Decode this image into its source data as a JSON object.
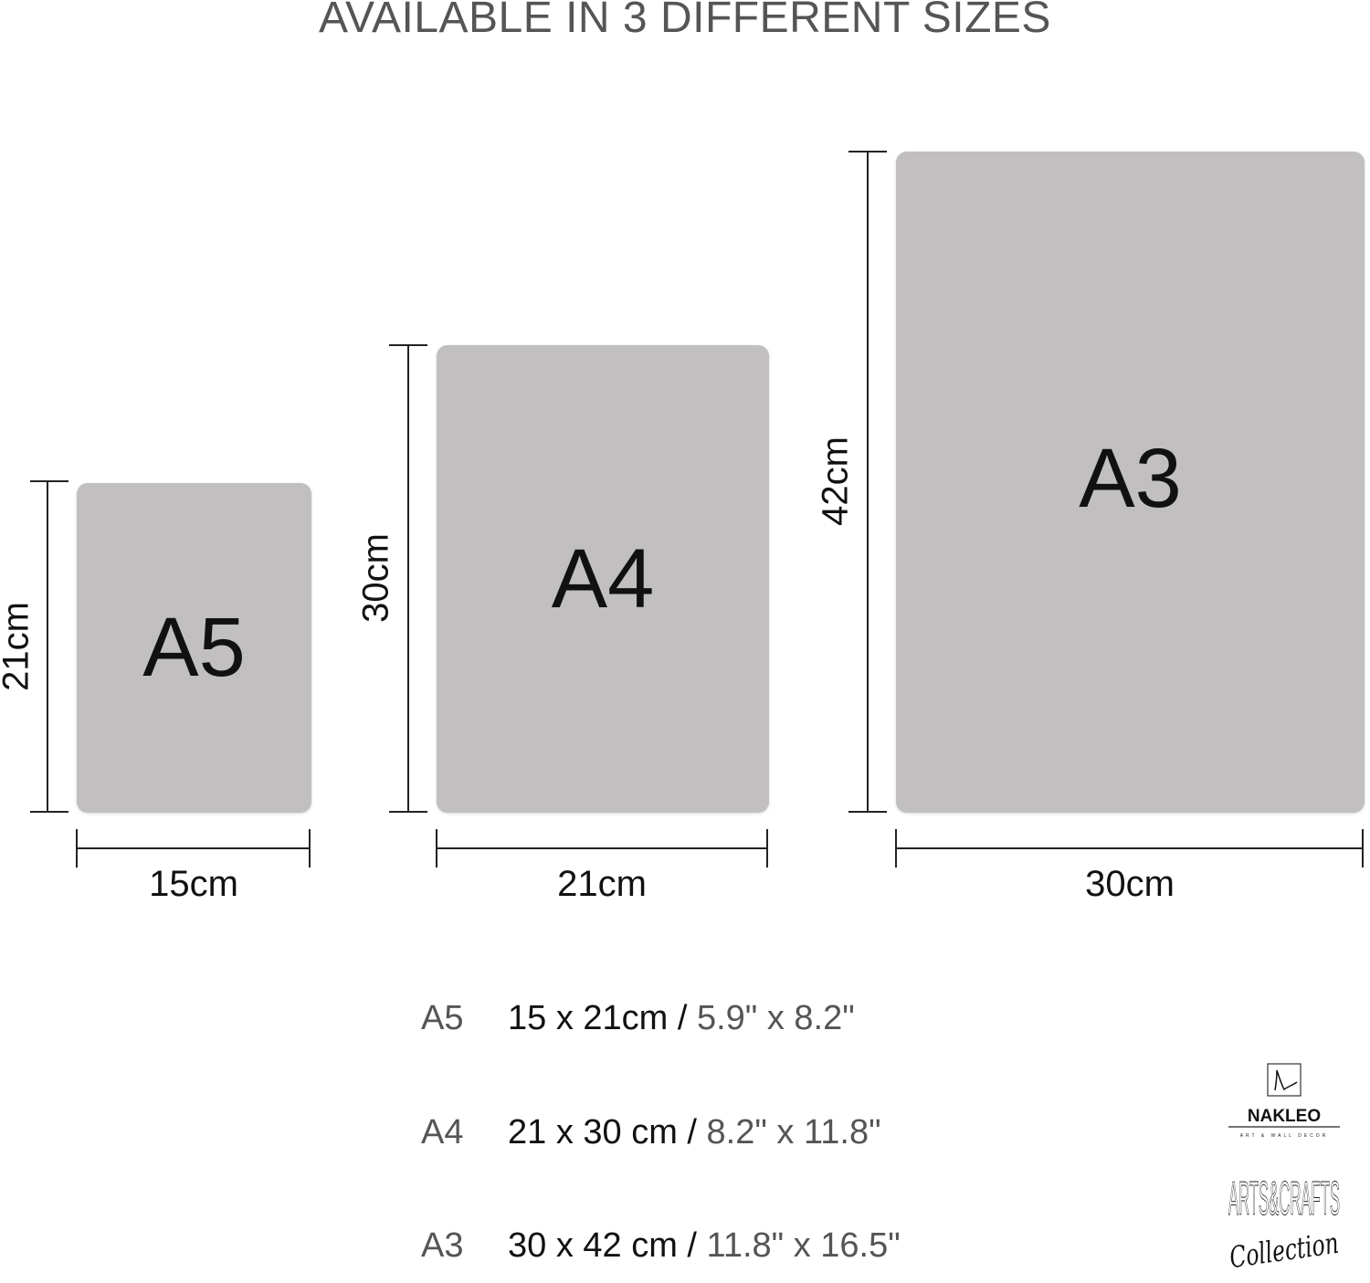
{
  "title": "AVAILABLE IN 3 DIFFERENT SIZES",
  "sheets": [
    {
      "name": "A5",
      "width_label": "15cm",
      "height_label": "21cm"
    },
    {
      "name": "A4",
      "width_label": "21cm",
      "height_label": "30cm"
    },
    {
      "name": "A3",
      "width_label": "30cm",
      "height_label": "42cm"
    }
  ],
  "specs": [
    {
      "size": "A5",
      "cm": "15 x 21cm / ",
      "inches": "5.9\" x 8.2\""
    },
    {
      "size": "A4",
      "cm": "21 x 30 cm / ",
      "inches": "8.2\" x 11.8\""
    },
    {
      "size": "A3",
      "cm": "30 x 42 cm / ",
      "inches": "11.8\" x 16.5\""
    }
  ],
  "logo": {
    "brand": "NAKLEO",
    "tagline": "ART & WALL DECOR",
    "collection_title": "ARTS&CRAFTS",
    "collection_script": "Collection"
  },
  "colors": {
    "sheet": "#c1bfc0",
    "text": "#111111",
    "muted": "#555555"
  }
}
